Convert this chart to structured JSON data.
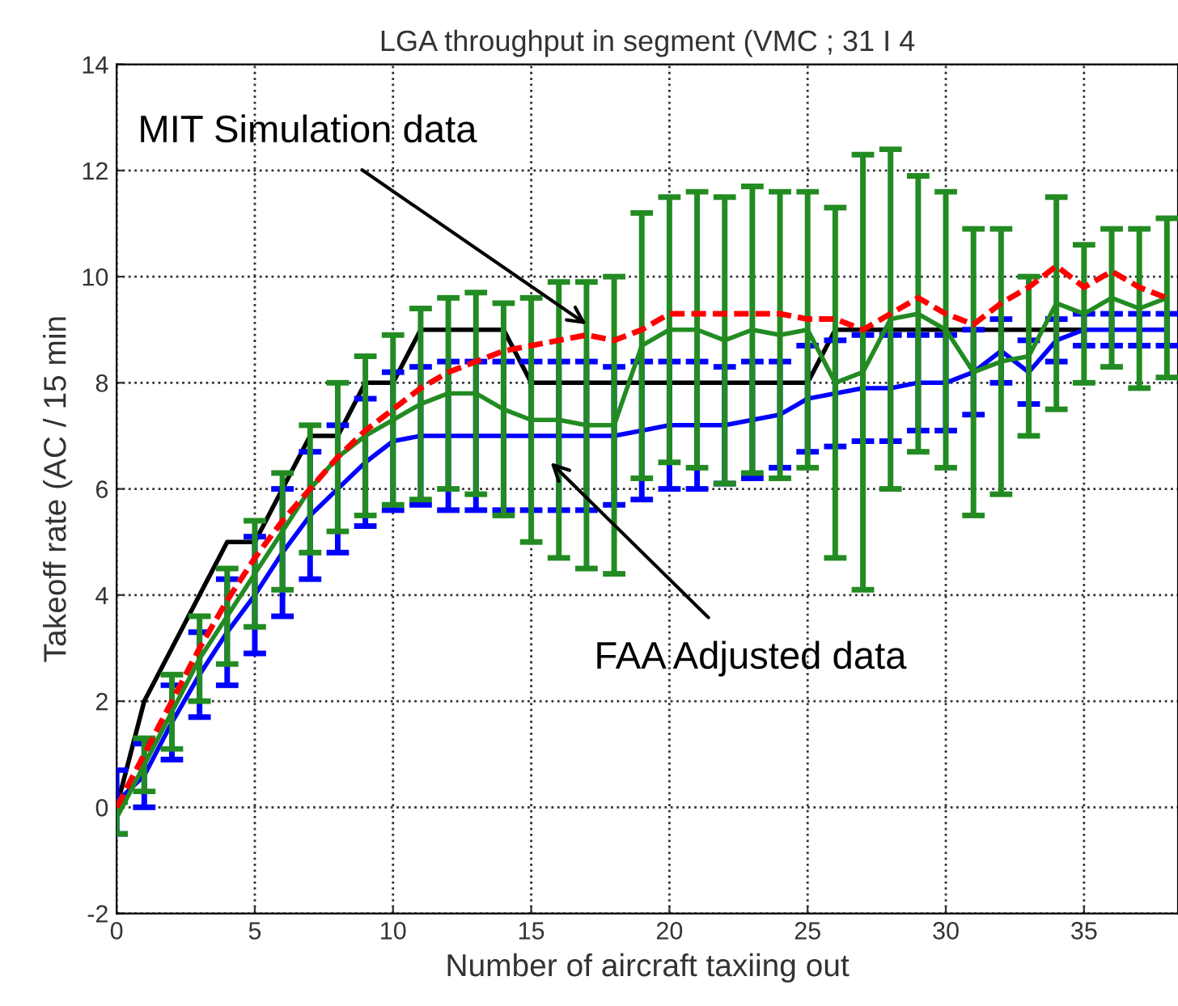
{
  "chart_data": {
    "type": "line",
    "title": "LGA throughput in segment (VMC ; 31 I 4",
    "xlabel": "Number of aircraft taxiing out",
    "ylabel": "Takeoff rate (AC / 15 min",
    "x": [
      0,
      1,
      2,
      3,
      4,
      5,
      6,
      7,
      8,
      9,
      10,
      11,
      12,
      13,
      14,
      15,
      16,
      17,
      18,
      19,
      20,
      21,
      22,
      23,
      24,
      25,
      26,
      27,
      28,
      29,
      30,
      31,
      32,
      33,
      34,
      35,
      36,
      37,
      38
    ],
    "series": [
      {
        "color": "#000000",
        "line_style": "solid",
        "values": [
          0,
          2,
          3,
          4,
          5,
          5,
          6,
          7,
          7,
          8,
          8,
          9,
          9,
          9,
          9,
          8,
          8,
          8,
          8,
          8,
          8,
          8,
          8,
          8,
          8,
          8,
          9,
          9,
          9,
          9,
          9,
          9,
          9,
          9,
          9,
          9,
          null,
          null,
          null
        ]
      },
      {
        "color": "#0000ff",
        "line_style": "solid",
        "values": [
          0.1,
          0.6,
          1.6,
          2.5,
          3.3,
          4.0,
          4.8,
          5.5,
          6.0,
          6.5,
          6.9,
          7.0,
          7.0,
          7.0,
          7.0,
          7.0,
          7.0,
          7.0,
          7.0,
          7.1,
          7.2,
          7.2,
          7.2,
          7.3,
          7.4,
          7.7,
          7.8,
          7.9,
          7.9,
          8.0,
          8.0,
          8.2,
          8.6,
          8.2,
          8.8,
          9.0,
          9.0,
          9.0,
          9.0
        ],
        "errors": [
          0.6,
          0.6,
          0.7,
          0.8,
          1.0,
          1.1,
          1.2,
          1.2,
          1.2,
          1.2,
          1.3,
          1.3,
          1.4,
          1.4,
          1.4,
          1.4,
          1.4,
          1.4,
          1.3,
          1.3,
          1.2,
          1.2,
          1.1,
          1.1,
          1.0,
          1.0,
          1.0,
          1.0,
          1.0,
          0.9,
          0.9,
          0.8,
          0.6,
          0.6,
          0.4,
          0.3,
          0.3,
          0.3,
          0.3
        ]
      },
      {
        "color": "#228b22",
        "line_style": "solid",
        "values": [
          -0.2,
          0.8,
          1.8,
          2.8,
          3.6,
          4.4,
          5.2,
          6.0,
          6.6,
          7.0,
          7.3,
          7.6,
          7.8,
          7.8,
          7.5,
          7.3,
          7.3,
          7.2,
          7.2,
          8.7,
          9.0,
          9.0,
          8.8,
          9.0,
          8.9,
          9.0,
          8.0,
          8.2,
          9.2,
          9.3,
          9.0,
          8.2,
          8.4,
          8.5,
          9.5,
          9.3,
          9.6,
          9.4,
          9.6
        ],
        "errors": [
          0.3,
          0.5,
          0.7,
          0.8,
          0.9,
          1.0,
          1.1,
          1.2,
          1.4,
          1.5,
          1.6,
          1.8,
          1.8,
          1.9,
          2.0,
          2.3,
          2.6,
          2.7,
          2.8,
          2.5,
          2.5,
          2.6,
          2.7,
          2.7,
          2.7,
          2.6,
          3.3,
          4.1,
          3.2,
          2.6,
          2.6,
          2.7,
          2.5,
          1.5,
          2.0,
          1.3,
          1.3,
          1.5,
          1.5
        ]
      },
      {
        "color": "#ff0000",
        "line_style": "dashed",
        "values": [
          0,
          1,
          2,
          3,
          3.9,
          4.7,
          5.4,
          6.0,
          6.6,
          7.1,
          7.5,
          7.9,
          8.2,
          8.4,
          8.6,
          8.7,
          8.8,
          8.9,
          8.8,
          9.0,
          9.3,
          9.3,
          9.3,
          9.3,
          9.3,
          9.2,
          9.2,
          9.0,
          9.3,
          9.6,
          9.3,
          9.1,
          9.5,
          9.8,
          10.2,
          9.8,
          10.1,
          9.8,
          9.6
        ]
      }
    ],
    "annotations": [
      {
        "text": "MIT Simulation data",
        "x": 17,
        "y": 9.1
      },
      {
        "text": "FAA Adjusted data",
        "x": 15.7,
        "y": 6.5
      }
    ],
    "xlim": [
      0,
      38.4
    ],
    "ylim": [
      -2,
      14
    ],
    "xticks": [
      0,
      5,
      10,
      15,
      20,
      25,
      30,
      35
    ],
    "yticks": [
      -2,
      0,
      2,
      4,
      6,
      8,
      10,
      12,
      14
    ],
    "grid": true,
    "legend": false,
    "marker": "none"
  }
}
